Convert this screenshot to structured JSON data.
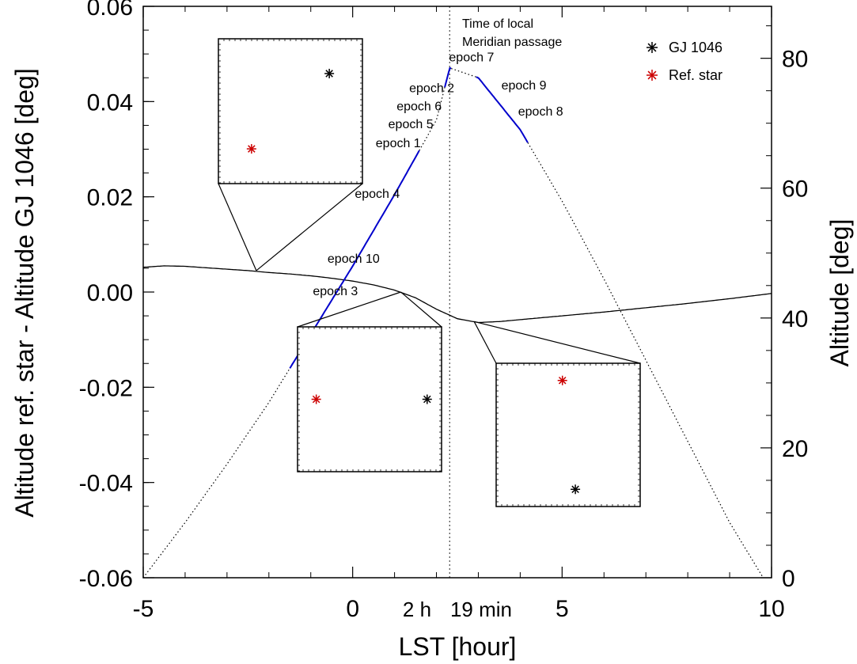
{
  "chart_data": {
    "type": "line",
    "xlabel": "LST [hour]",
    "ylabel": "Altitude ref. star - Altitude GJ 1046 [deg]",
    "y2label": "Altitude [deg]",
    "xlim": [
      -5,
      10
    ],
    "ylim": [
      -0.06,
      0.06
    ],
    "y2lim": [
      0,
      88
    ],
    "x_ticks": [
      -5,
      0,
      5,
      10
    ],
    "y_ticks": [
      -0.06,
      -0.04,
      -0.02,
      0.0,
      0.02,
      0.04,
      0.06
    ],
    "y_tick_labels": [
      "-0.06",
      "-0.04",
      "-0.02",
      "0.00",
      "0.02",
      "0.04",
      "0.06"
    ],
    "y2_ticks": [
      0,
      20,
      40,
      60,
      80
    ],
    "meridian": {
      "x": 2.3167,
      "label_line1": "Time of local",
      "label_line2": "Meridian passage",
      "note_hours": "2 h",
      "note_minutes": "19 min"
    },
    "series": [
      {
        "kind": "difference",
        "axis": "left",
        "style": "solid",
        "color": "#000000",
        "x": [
          -5,
          -4.5,
          -4,
          -3.5,
          -3,
          -2.5,
          -2,
          -1.5,
          -1,
          -0.5,
          0,
          0.5,
          1,
          1.5,
          2,
          2.5,
          3,
          3.5,
          4,
          5,
          6,
          7,
          8,
          9,
          10
        ],
        "y": [
          0.0052,
          0.0055,
          0.0054,
          0.0051,
          0.0048,
          0.0045,
          0.0041,
          0.0038,
          0.0034,
          0.0029,
          0.0023,
          0.0015,
          0.0004,
          -0.0012,
          -0.0036,
          -0.0056,
          -0.0064,
          -0.0062,
          -0.0058,
          -0.005,
          -0.0042,
          -0.0033,
          -0.0024,
          -0.0014,
          -0.0003
        ]
      },
      {
        "kind": "altitude",
        "axis": "right",
        "style": "dotted",
        "color": "#000000",
        "x": [
          -5,
          -4,
          -3,
          -2,
          -1,
          0,
          1,
          2,
          2.3167,
          3,
          4,
          5,
          6,
          7,
          8,
          9,
          9.8
        ],
        "y": [
          0,
          8.5,
          17.5,
          27,
          37.5,
          48,
          59,
          70.5,
          78.5,
          77,
          69,
          58,
          46,
          33.5,
          21,
          8.5,
          0
        ]
      }
    ],
    "observed_segments": [
      {
        "x_start": -1.5,
        "x_end": 1.6,
        "color": "#0000cc"
      },
      {
        "x_start": 2.2,
        "x_end": 2.35,
        "color": "#0000cc"
      },
      {
        "x_start": 2.95,
        "x_end": 4.2,
        "color": "#0000cc"
      }
    ],
    "epoch_labels": [
      {
        "text": "epoch 7",
        "x": 2.3,
        "y2": 79.5
      },
      {
        "text": "epoch 2",
        "x": 1.35,
        "y2": 74.8
      },
      {
        "text": "epoch 6",
        "x": 1.05,
        "y2": 72.0
      },
      {
        "text": "epoch 5",
        "x": 0.85,
        "y2": 69.2
      },
      {
        "text": "epoch 1",
        "x": 0.55,
        "y2": 66.3
      },
      {
        "text": "epoch 4",
        "x": 0.05,
        "y2": 58.5
      },
      {
        "text": "epoch 10",
        "x": -0.6,
        "y2": 48.5
      },
      {
        "text": "epoch 3",
        "x": -0.95,
        "y2": 43.5
      },
      {
        "text": "epoch 9",
        "x": 3.55,
        "y2": 75.2
      },
      {
        "text": "epoch 8",
        "x": 3.95,
        "y2": 71.2
      }
    ],
    "legend": {
      "position": "top-right",
      "entries": [
        {
          "label": "GJ 1046",
          "color": "#000000"
        },
        {
          "label": "Ref. star",
          "color": "#cc0000"
        }
      ]
    },
    "insets": [
      {
        "anchor": {
          "x": -2.3,
          "y": 0.0045
        },
        "target_star_pos": [
          0.77,
          0.24
        ],
        "ref_star_pos": [
          0.23,
          0.76
        ]
      },
      {
        "anchor": {
          "x": 1.15,
          "y": 0.0
        },
        "target_star_pos": [
          0.9,
          0.5
        ],
        "ref_star_pos": [
          0.13,
          0.5
        ]
      },
      {
        "anchor": {
          "x": 2.9,
          "y": -0.0062
        },
        "target_star_pos": [
          0.55,
          0.88
        ],
        "ref_star_pos": [
          0.46,
          0.12
        ]
      }
    ]
  }
}
